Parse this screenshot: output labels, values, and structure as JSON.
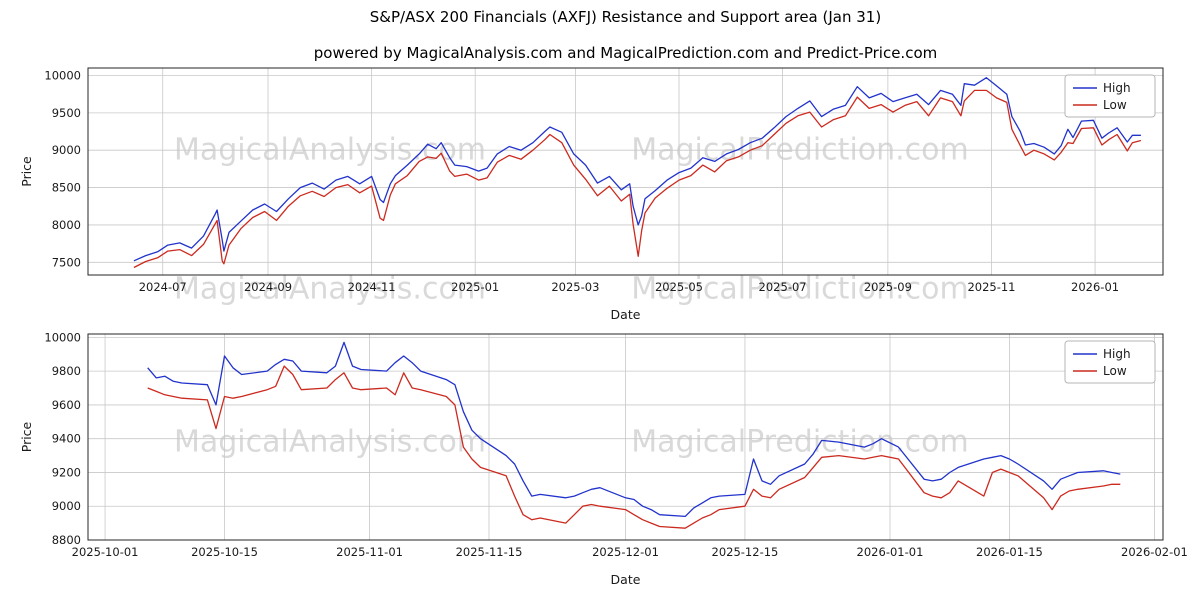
{
  "figure": {
    "title": "S&P/ASX 200 Financials (AXFJ) Resistance and Support area (Jan 31)",
    "subtitle": "powered by MagicalAnalysis.com and MagicalPrediction.com and Predict-Price.com"
  },
  "watermark": {
    "left_text": "MagicalAnalysis.com",
    "right_text": "MagicalPrediction.com"
  },
  "style": {
    "background": "#ffffff",
    "grid_color": "#c8c8c8",
    "axis_color": "#262626",
    "text_color": "#1a1a1a",
    "high_color": "#2233cc",
    "low_color": "#cc2a1f",
    "legend_border": "#b5b5b5"
  },
  "chart_data": [
    {
      "type": "line",
      "title": "S&P/ASX 200 Financials (AXFJ) Resistance and Support area (Jan 31)",
      "xlabel": "Date",
      "ylabel": "Price",
      "legend": [
        "High",
        "Low"
      ],
      "legend_position": "upper right",
      "grid": true,
      "x_domain": [
        "2024-05-18",
        "2026-02-10"
      ],
      "y_domain": [
        7330,
        10100
      ],
      "y_ticks": [
        7500,
        8000,
        8500,
        9000,
        9500,
        10000
      ],
      "x_ticks": [
        {
          "date": "2024-07-01",
          "label": "2024-07"
        },
        {
          "date": "2024-09-01",
          "label": "2024-09"
        },
        {
          "date": "2024-11-01",
          "label": "2024-11"
        },
        {
          "date": "2025-01-01",
          "label": "2025-01"
        },
        {
          "date": "2025-03-01",
          "label": "2025-03"
        },
        {
          "date": "2025-05-01",
          "label": "2025-05"
        },
        {
          "date": "2025-07-01",
          "label": "2025-07"
        },
        {
          "date": "2025-09-01",
          "label": "2025-09"
        },
        {
          "date": "2025-11-01",
          "label": "2025-11"
        },
        {
          "date": "2026-01-01",
          "label": "2026-01"
        }
      ],
      "x": [
        "2024-06-14",
        "2024-06-21",
        "2024-06-28",
        "2024-07-04",
        "2024-07-11",
        "2024-07-18",
        "2024-07-25",
        "2024-08-01",
        "2024-08-02",
        "2024-08-05",
        "2024-08-06",
        "2024-08-09",
        "2024-08-16",
        "2024-08-23",
        "2024-08-30",
        "2024-09-06",
        "2024-09-13",
        "2024-09-20",
        "2024-09-27",
        "2024-10-04",
        "2024-10-11",
        "2024-10-18",
        "2024-10-25",
        "2024-11-01",
        "2024-11-06",
        "2024-11-08",
        "2024-11-12",
        "2024-11-15",
        "2024-11-22",
        "2024-11-29",
        "2024-12-04",
        "2024-12-09",
        "2024-12-12",
        "2024-12-17",
        "2024-12-20",
        "2024-12-27",
        "2025-01-03",
        "2025-01-08",
        "2025-01-14",
        "2025-01-21",
        "2025-01-28",
        "2025-02-04",
        "2025-02-11",
        "2025-02-14",
        "2025-02-21",
        "2025-02-28",
        "2025-03-07",
        "2025-03-14",
        "2025-03-21",
        "2025-03-28",
        "2025-04-02",
        "2025-04-04",
        "2025-04-07",
        "2025-04-09",
        "2025-04-11",
        "2025-04-17",
        "2025-04-24",
        "2025-05-01",
        "2025-05-08",
        "2025-05-15",
        "2025-05-22",
        "2025-05-29",
        "2025-06-05",
        "2025-06-12",
        "2025-06-19",
        "2025-06-26",
        "2025-07-03",
        "2025-07-10",
        "2025-07-17",
        "2025-07-24",
        "2025-07-31",
        "2025-08-07",
        "2025-08-14",
        "2025-08-21",
        "2025-08-28",
        "2025-09-04",
        "2025-09-11",
        "2025-09-18",
        "2025-09-25",
        "2025-10-02",
        "2025-10-09",
        "2025-10-14",
        "2025-10-16",
        "2025-10-22",
        "2025-10-29",
        "2025-11-04",
        "2025-11-10",
        "2025-11-13",
        "2025-11-18",
        "2025-11-21",
        "2025-11-26",
        "2025-12-02",
        "2025-12-08",
        "2025-12-12",
        "2025-12-16",
        "2025-12-19",
        "2025-12-24",
        "2025-12-31",
        "2026-01-05",
        "2026-01-09",
        "2026-01-14",
        "2026-01-20",
        "2026-01-23",
        "2026-01-28"
      ],
      "series": [
        {
          "name": "High",
          "color": "#2233cc",
          "values": [
            7520,
            7590,
            7640,
            7730,
            7760,
            7690,
            7850,
            8150,
            8200,
            7800,
            7650,
            7900,
            8050,
            8200,
            8280,
            8180,
            8350,
            8500,
            8560,
            8480,
            8600,
            8650,
            8550,
            8650,
            8340,
            8300,
            8550,
            8660,
            8800,
            8950,
            9080,
            9020,
            9100,
            8900,
            8800,
            8780,
            8720,
            8760,
            8950,
            9050,
            9000,
            9100,
            9250,
            9310,
            9240,
            8950,
            8800,
            8560,
            8650,
            8470,
            8550,
            8250,
            8000,
            8120,
            8350,
            8460,
            8600,
            8700,
            8760,
            8900,
            8850,
            8950,
            9010,
            9100,
            9160,
            9300,
            9450,
            9560,
            9660,
            9450,
            9550,
            9600,
            9850,
            9700,
            9760,
            9650,
            9700,
            9750,
            9610,
            9800,
            9750,
            9600,
            9890,
            9870,
            9970,
            9860,
            9750,
            9450,
            9250,
            9070,
            9090,
            9040,
            8950,
            9060,
            9280,
            9170,
            9390,
            9400,
            9160,
            9230,
            9300,
            9110,
            9200,
            9200
          ]
        },
        {
          "name": "Low",
          "color": "#cc2a1f",
          "values": [
            7430,
            7510,
            7560,
            7650,
            7670,
            7590,
            7740,
            8020,
            8060,
            7520,
            7480,
            7730,
            7950,
            8100,
            8180,
            8060,
            8250,
            8390,
            8450,
            8380,
            8500,
            8540,
            8430,
            8520,
            8090,
            8060,
            8400,
            8550,
            8660,
            8850,
            8910,
            8890,
            8960,
            8720,
            8650,
            8680,
            8600,
            8630,
            8840,
            8930,
            8880,
            9000,
            9140,
            9210,
            9100,
            8800,
            8610,
            8390,
            8520,
            8320,
            8410,
            8010,
            7580,
            7920,
            8160,
            8360,
            8490,
            8600,
            8660,
            8800,
            8710,
            8860,
            8910,
            9000,
            9060,
            9210,
            9360,
            9460,
            9510,
            9310,
            9410,
            9460,
            9710,
            9560,
            9610,
            9510,
            9600,
            9650,
            9460,
            9700,
            9650,
            9460,
            9660,
            9800,
            9800,
            9700,
            9640,
            9280,
            9060,
            8930,
            9000,
            8950,
            8870,
            8970,
            9100,
            9090,
            9290,
            9300,
            9070,
            9140,
            9210,
            8990,
            9100,
            9130
          ]
        }
      ]
    },
    {
      "type": "line",
      "title": "",
      "xlabel": "Date",
      "ylabel": "Price",
      "legend": [
        "High",
        "Low"
      ],
      "legend_position": "upper right",
      "grid": true,
      "x_domain": [
        "2025-09-29",
        "2026-02-02"
      ],
      "y_domain": [
        8800,
        10020
      ],
      "y_ticks": [
        8800,
        9000,
        9200,
        9400,
        9600,
        9800,
        10000
      ],
      "x_ticks": [
        {
          "date": "2025-10-01",
          "label": "2025-10-01"
        },
        {
          "date": "2025-10-15",
          "label": "2025-10-15"
        },
        {
          "date": "2025-11-01",
          "label": "2025-11-01"
        },
        {
          "date": "2025-11-15",
          "label": "2025-11-15"
        },
        {
          "date": "2025-12-01",
          "label": "2025-12-01"
        },
        {
          "date": "2025-12-15",
          "label": "2025-12-15"
        },
        {
          "date": "2026-01-01",
          "label": "2026-01-01"
        },
        {
          "date": "2026-01-15",
          "label": "2026-01-15"
        },
        {
          "date": "2026-02-01",
          "label": "2026-02-01"
        }
      ],
      "x": [
        "2025-10-06",
        "2025-10-07",
        "2025-10-08",
        "2025-10-09",
        "2025-10-10",
        "2025-10-13",
        "2025-10-14",
        "2025-10-15",
        "2025-10-16",
        "2025-10-17",
        "2025-10-20",
        "2025-10-21",
        "2025-10-22",
        "2025-10-23",
        "2025-10-24",
        "2025-10-27",
        "2025-10-28",
        "2025-10-29",
        "2025-10-30",
        "2025-10-31",
        "2025-11-03",
        "2025-11-04",
        "2025-11-05",
        "2025-11-06",
        "2025-11-07",
        "2025-11-10",
        "2025-11-11",
        "2025-11-12",
        "2025-11-13",
        "2025-11-14",
        "2025-11-17",
        "2025-11-18",
        "2025-11-19",
        "2025-11-20",
        "2025-11-21",
        "2025-11-24",
        "2025-11-25",
        "2025-11-26",
        "2025-11-27",
        "2025-11-28",
        "2025-12-01",
        "2025-12-02",
        "2025-12-03",
        "2025-12-04",
        "2025-12-05",
        "2025-12-08",
        "2025-12-09",
        "2025-12-10",
        "2025-12-11",
        "2025-12-12",
        "2025-12-15",
        "2025-12-16",
        "2025-12-17",
        "2025-12-18",
        "2025-12-19",
        "2025-12-22",
        "2025-12-23",
        "2025-12-24",
        "2025-12-26",
        "2025-12-29",
        "2025-12-30",
        "2025-12-31",
        "2026-01-02",
        "2026-01-05",
        "2026-01-06",
        "2026-01-07",
        "2026-01-08",
        "2026-01-09",
        "2026-01-12",
        "2026-01-13",
        "2026-01-14",
        "2026-01-15",
        "2026-01-16",
        "2026-01-19",
        "2026-01-20",
        "2026-01-21",
        "2026-01-22",
        "2026-01-23",
        "2026-01-26",
        "2026-01-27",
        "2026-01-28"
      ],
      "series": [
        {
          "name": "High",
          "color": "#2233cc",
          "values": [
            9820,
            9760,
            9770,
            9740,
            9730,
            9720,
            9600,
            9890,
            9820,
            9780,
            9800,
            9840,
            9870,
            9860,
            9800,
            9790,
            9830,
            9970,
            9830,
            9810,
            9800,
            9850,
            9890,
            9850,
            9800,
            9750,
            9720,
            9560,
            9450,
            9400,
            9300,
            9250,
            9150,
            9060,
            9070,
            9050,
            9060,
            9080,
            9100,
            9110,
            9050,
            9040,
            9000,
            8980,
            8950,
            8940,
            8990,
            9020,
            9050,
            9060,
            9070,
            9280,
            9150,
            9130,
            9180,
            9250,
            9310,
            9390,
            9380,
            9350,
            9370,
            9400,
            9350,
            9160,
            9150,
            9160,
            9200,
            9230,
            9280,
            9290,
            9300,
            9280,
            9250,
            9150,
            9100,
            9160,
            9180,
            9200,
            9210,
            9200,
            9190
          ]
        },
        {
          "name": "Low",
          "color": "#cc2a1f",
          "values": [
            9700,
            9680,
            9660,
            9650,
            9640,
            9630,
            9460,
            9650,
            9640,
            9650,
            9690,
            9710,
            9830,
            9780,
            9690,
            9700,
            9750,
            9790,
            9700,
            9690,
            9700,
            9660,
            9790,
            9700,
            9690,
            9650,
            9600,
            9350,
            9280,
            9230,
            9180,
            9060,
            8950,
            8920,
            8930,
            8900,
            8950,
            9000,
            9010,
            9000,
            8980,
            8950,
            8920,
            8900,
            8880,
            8870,
            8900,
            8930,
            8950,
            8980,
            9000,
            9100,
            9060,
            9050,
            9100,
            9170,
            9230,
            9290,
            9300,
            9280,
            9290,
            9300,
            9280,
            9080,
            9060,
            9050,
            9080,
            9150,
            9060,
            9200,
            9220,
            9200,
            9180,
            9050,
            8980,
            9060,
            9090,
            9100,
            9120,
            9130,
            9130
          ]
        }
      ]
    }
  ]
}
